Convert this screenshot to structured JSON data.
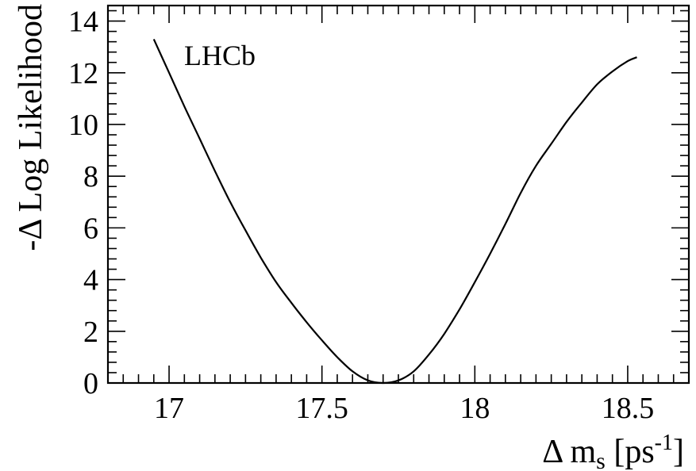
{
  "chart_data": {
    "type": "line",
    "title": "",
    "annotation": "LHCb",
    "xlabel": {
      "base": "Δ m",
      "subscript": "s",
      "unit_open": " [ps",
      "superscript": "-1",
      "unit_close": "]"
    },
    "ylabel": "-Δ Log Likelihood",
    "xlim": [
      16.8,
      18.7
    ],
    "ylim": [
      0,
      14.6
    ],
    "x_ticks": [
      17,
      17.5,
      18,
      18.5
    ],
    "x_tick_labels": [
      "17",
      "17.5",
      "18",
      "18.5"
    ],
    "y_ticks": [
      0,
      2,
      4,
      6,
      8,
      10,
      12,
      14
    ],
    "y_tick_labels": [
      "0",
      "2",
      "4",
      "6",
      "8",
      "10",
      "12",
      "14"
    ],
    "grid": false,
    "line_color": "#000000",
    "series": [
      {
        "x": [
          16.95,
          17.0,
          17.05,
          17.1,
          17.15,
          17.2,
          17.25,
          17.3,
          17.35,
          17.4,
          17.45,
          17.5,
          17.55,
          17.6,
          17.65,
          17.7,
          17.75,
          17.8,
          17.85,
          17.9,
          17.95,
          18.0,
          18.05,
          18.1,
          18.15,
          18.2,
          18.25,
          18.3,
          18.35,
          18.4,
          18.45,
          18.5,
          18.53
        ],
        "y": [
          13.3,
          12.0,
          10.7,
          9.45,
          8.2,
          7.0,
          5.9,
          4.85,
          3.9,
          3.1,
          2.35,
          1.65,
          1.0,
          0.45,
          0.1,
          0.0,
          0.1,
          0.45,
          1.1,
          1.9,
          2.85,
          3.9,
          5.0,
          6.15,
          7.35,
          8.4,
          9.25,
          10.1,
          10.85,
          11.55,
          12.05,
          12.45,
          12.6
        ]
      }
    ]
  }
}
